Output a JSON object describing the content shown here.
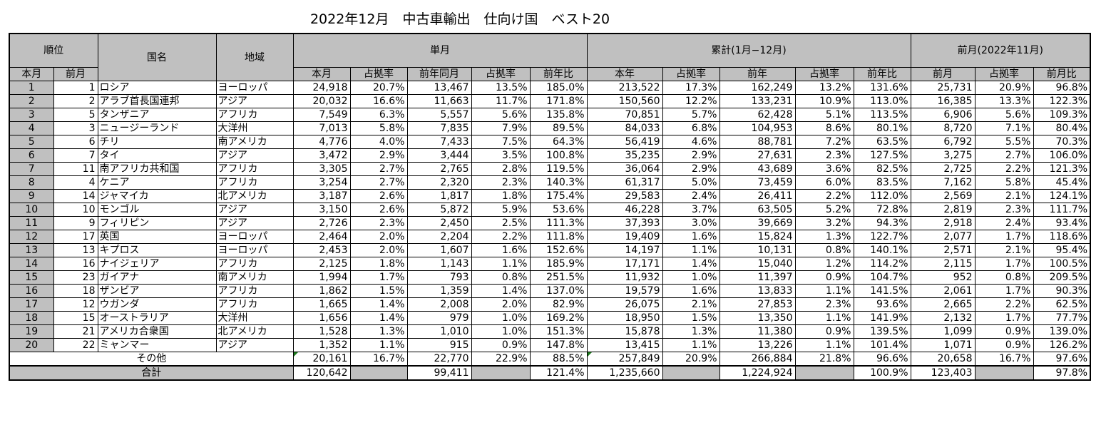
{
  "title": "2022年12月　中古車輸出　仕向け国　ベスト20",
  "headers": {
    "rank": "順位",
    "country": "国名",
    "region": "地域",
    "single": "単月",
    "cumulative": "累計(1月−12月)",
    "prev_month": "前月(2022年11月)",
    "rank_cur": "本月",
    "rank_prev": "前月",
    "s_cur": "本月",
    "s_share": "占拠率",
    "s_ly": "前年同月",
    "s_ly_share": "占拠率",
    "s_yoy": "前年比",
    "c_cur": "本年",
    "c_share": "占拠率",
    "c_ly": "前年",
    "c_ly_share": "占拠率",
    "c_yoy": "前年比",
    "p_val": "前月",
    "p_share": "占拠率",
    "p_ratio": "前月比"
  },
  "rows": [
    {
      "rank": "1",
      "prev_rank": "1",
      "country": "ロシア",
      "region": "ヨーロッパ",
      "s_cur": "24,918",
      "s_share": "20.7%",
      "s_ly": "13,467",
      "s_ly_share": "13.5%",
      "s_yoy": "185.0%",
      "c_cur": "213,522",
      "c_share": "17.3%",
      "c_ly": "162,249",
      "c_ly_share": "13.2%",
      "c_yoy": "131.6%",
      "p_val": "25,731",
      "p_share": "20.9%",
      "p_ratio": "96.8%"
    },
    {
      "rank": "2",
      "prev_rank": "2",
      "country": "アラブ首長国連邦",
      "region": "アジア",
      "s_cur": "20,032",
      "s_share": "16.6%",
      "s_ly": "11,663",
      "s_ly_share": "11.7%",
      "s_yoy": "171.8%",
      "c_cur": "150,560",
      "c_share": "12.2%",
      "c_ly": "133,231",
      "c_ly_share": "10.9%",
      "c_yoy": "113.0%",
      "p_val": "16,385",
      "p_share": "13.3%",
      "p_ratio": "122.3%"
    },
    {
      "rank": "3",
      "prev_rank": "5",
      "country": "タンザニア",
      "region": "アフリカ",
      "s_cur": "7,549",
      "s_share": "6.3%",
      "s_ly": "5,557",
      "s_ly_share": "5.6%",
      "s_yoy": "135.8%",
      "c_cur": "70,851",
      "c_share": "5.7%",
      "c_ly": "62,428",
      "c_ly_share": "5.1%",
      "c_yoy": "113.5%",
      "p_val": "6,906",
      "p_share": "5.6%",
      "p_ratio": "109.3%"
    },
    {
      "rank": "4",
      "prev_rank": "3",
      "country": "ニュージーランド",
      "region": "大洋州",
      "s_cur": "7,013",
      "s_share": "5.8%",
      "s_ly": "7,835",
      "s_ly_share": "7.9%",
      "s_yoy": "89.5%",
      "c_cur": "84,033",
      "c_share": "6.8%",
      "c_ly": "104,953",
      "c_ly_share": "8.6%",
      "c_yoy": "80.1%",
      "p_val": "8,720",
      "p_share": "7.1%",
      "p_ratio": "80.4%"
    },
    {
      "rank": "5",
      "prev_rank": "6",
      "country": "チリ",
      "region": "南アメリカ",
      "s_cur": "4,776",
      "s_share": "4.0%",
      "s_ly": "7,433",
      "s_ly_share": "7.5%",
      "s_yoy": "64.3%",
      "c_cur": "56,419",
      "c_share": "4.6%",
      "c_ly": "88,781",
      "c_ly_share": "7.2%",
      "c_yoy": "63.5%",
      "p_val": "6,792",
      "p_share": "5.5%",
      "p_ratio": "70.3%"
    },
    {
      "rank": "6",
      "prev_rank": "7",
      "country": "タイ",
      "region": "アジア",
      "s_cur": "3,472",
      "s_share": "2.9%",
      "s_ly": "3,444",
      "s_ly_share": "3.5%",
      "s_yoy": "100.8%",
      "c_cur": "35,235",
      "c_share": "2.9%",
      "c_ly": "27,631",
      "c_ly_share": "2.3%",
      "c_yoy": "127.5%",
      "p_val": "3,275",
      "p_share": "2.7%",
      "p_ratio": "106.0%"
    },
    {
      "rank": "7",
      "prev_rank": "11",
      "country": "南アフリカ共和国",
      "region": "アフリカ",
      "s_cur": "3,305",
      "s_share": "2.7%",
      "s_ly": "2,765",
      "s_ly_share": "2.8%",
      "s_yoy": "119.5%",
      "c_cur": "36,064",
      "c_share": "2.9%",
      "c_ly": "43,689",
      "c_ly_share": "3.6%",
      "c_yoy": "82.5%",
      "p_val": "2,725",
      "p_share": "2.2%",
      "p_ratio": "121.3%"
    },
    {
      "rank": "8",
      "prev_rank": "4",
      "country": "ケニア",
      "region": "アフリカ",
      "s_cur": "3,254",
      "s_share": "2.7%",
      "s_ly": "2,320",
      "s_ly_share": "2.3%",
      "s_yoy": "140.3%",
      "c_cur": "61,317",
      "c_share": "5.0%",
      "c_ly": "73,459",
      "c_ly_share": "6.0%",
      "c_yoy": "83.5%",
      "p_val": "7,162",
      "p_share": "5.8%",
      "p_ratio": "45.4%"
    },
    {
      "rank": "9",
      "prev_rank": "14",
      "country": "ジャマイカ",
      "region": "北アメリカ",
      "s_cur": "3,187",
      "s_share": "2.6%",
      "s_ly": "1,817",
      "s_ly_share": "1.8%",
      "s_yoy": "175.4%",
      "c_cur": "29,583",
      "c_share": "2.4%",
      "c_ly": "26,411",
      "c_ly_share": "2.2%",
      "c_yoy": "112.0%",
      "p_val": "2,569",
      "p_share": "2.1%",
      "p_ratio": "124.1%"
    },
    {
      "rank": "10",
      "prev_rank": "10",
      "country": "モンゴル",
      "region": "アジア",
      "s_cur": "3,150",
      "s_share": "2.6%",
      "s_ly": "5,872",
      "s_ly_share": "5.9%",
      "s_yoy": "53.6%",
      "c_cur": "46,228",
      "c_share": "3.7%",
      "c_ly": "63,505",
      "c_ly_share": "5.2%",
      "c_yoy": "72.8%",
      "p_val": "2,819",
      "p_share": "2.3%",
      "p_ratio": "111.7%"
    },
    {
      "rank": "11",
      "prev_rank": "9",
      "country": "フィリピン",
      "region": "アジア",
      "s_cur": "2,726",
      "s_share": "2.3%",
      "s_ly": "2,450",
      "s_ly_share": "2.5%",
      "s_yoy": "111.3%",
      "c_cur": "37,393",
      "c_share": "3.0%",
      "c_ly": "39,669",
      "c_ly_share": "3.2%",
      "c_yoy": "94.3%",
      "p_val": "2,918",
      "p_share": "2.4%",
      "p_ratio": "93.4%"
    },
    {
      "rank": "12",
      "prev_rank": "17",
      "country": "英国",
      "region": "ヨーロッパ",
      "s_cur": "2,464",
      "s_share": "2.0%",
      "s_ly": "2,204",
      "s_ly_share": "2.2%",
      "s_yoy": "111.8%",
      "c_cur": "19,409",
      "c_share": "1.6%",
      "c_ly": "15,824",
      "c_ly_share": "1.3%",
      "c_yoy": "122.7%",
      "p_val": "2,077",
      "p_share": "1.7%",
      "p_ratio": "118.6%"
    },
    {
      "rank": "13",
      "prev_rank": "13",
      "country": "キプロス",
      "region": "ヨーロッパ",
      "s_cur": "2,453",
      "s_share": "2.0%",
      "s_ly": "1,607",
      "s_ly_share": "1.6%",
      "s_yoy": "152.6%",
      "c_cur": "14,197",
      "c_share": "1.1%",
      "c_ly": "10,131",
      "c_ly_share": "0.8%",
      "c_yoy": "140.1%",
      "p_val": "2,571",
      "p_share": "2.1%",
      "p_ratio": "95.4%"
    },
    {
      "rank": "14",
      "prev_rank": "16",
      "country": "ナイジェリア",
      "region": "アフリカ",
      "s_cur": "2,125",
      "s_share": "1.8%",
      "s_ly": "1,143",
      "s_ly_share": "1.1%",
      "s_yoy": "185.9%",
      "c_cur": "17,171",
      "c_share": "1.4%",
      "c_ly": "15,040",
      "c_ly_share": "1.2%",
      "c_yoy": "114.2%",
      "p_val": "2,115",
      "p_share": "1.7%",
      "p_ratio": "100.5%"
    },
    {
      "rank": "15",
      "prev_rank": "23",
      "country": "ガイアナ",
      "region": "南アメリカ",
      "s_cur": "1,994",
      "s_share": "1.7%",
      "s_ly": "793",
      "s_ly_share": "0.8%",
      "s_yoy": "251.5%",
      "c_cur": "11,932",
      "c_share": "1.0%",
      "c_ly": "11,397",
      "c_ly_share": "0.9%",
      "c_yoy": "104.7%",
      "p_val": "952",
      "p_share": "0.8%",
      "p_ratio": "209.5%"
    },
    {
      "rank": "16",
      "prev_rank": "18",
      "country": "ザンビア",
      "region": "アフリカ",
      "s_cur": "1,862",
      "s_share": "1.5%",
      "s_ly": "1,359",
      "s_ly_share": "1.4%",
      "s_yoy": "137.0%",
      "c_cur": "19,579",
      "c_share": "1.6%",
      "c_ly": "13,833",
      "c_ly_share": "1.1%",
      "c_yoy": "141.5%",
      "p_val": "2,061",
      "p_share": "1.7%",
      "p_ratio": "90.3%"
    },
    {
      "rank": "17",
      "prev_rank": "12",
      "country": "ウガンダ",
      "region": "アフリカ",
      "s_cur": "1,665",
      "s_share": "1.4%",
      "s_ly": "2,008",
      "s_ly_share": "2.0%",
      "s_yoy": "82.9%",
      "c_cur": "26,075",
      "c_share": "2.1%",
      "c_ly": "27,853",
      "c_ly_share": "2.3%",
      "c_yoy": "93.6%",
      "p_val": "2,665",
      "p_share": "2.2%",
      "p_ratio": "62.5%"
    },
    {
      "rank": "18",
      "prev_rank": "15",
      "country": "オーストラリア",
      "region": "大洋州",
      "s_cur": "1,656",
      "s_share": "1.4%",
      "s_ly": "979",
      "s_ly_share": "1.0%",
      "s_yoy": "169.2%",
      "c_cur": "18,950",
      "c_share": "1.5%",
      "c_ly": "13,350",
      "c_ly_share": "1.1%",
      "c_yoy": "141.9%",
      "p_val": "2,132",
      "p_share": "1.7%",
      "p_ratio": "77.7%"
    },
    {
      "rank": "19",
      "prev_rank": "21",
      "country": "アメリカ合衆国",
      "region": "北アメリカ",
      "s_cur": "1,528",
      "s_share": "1.3%",
      "s_ly": "1,010",
      "s_ly_share": "1.0%",
      "s_yoy": "151.3%",
      "c_cur": "15,878",
      "c_share": "1.3%",
      "c_ly": "11,380",
      "c_ly_share": "0.9%",
      "c_yoy": "139.5%",
      "p_val": "1,099",
      "p_share": "0.9%",
      "p_ratio": "139.0%"
    },
    {
      "rank": "20",
      "prev_rank": "22",
      "country": "ミャンマー",
      "region": "アジア",
      "s_cur": "1,352",
      "s_share": "1.1%",
      "s_ly": "915",
      "s_ly_share": "0.9%",
      "s_yoy": "147.8%",
      "c_cur": "13,415",
      "c_share": "1.1%",
      "c_ly": "13,226",
      "c_ly_share": "1.1%",
      "c_yoy": "101.4%",
      "p_val": "1,071",
      "p_share": "0.9%",
      "p_ratio": "126.2%"
    }
  ],
  "other": {
    "label": "その他",
    "s_cur": "20,161",
    "s_share": "16.7%",
    "s_ly": "22,770",
    "s_ly_share": "22.9%",
    "s_yoy": "88.5%",
    "c_cur": "257,849",
    "c_share": "20.9%",
    "c_ly": "266,884",
    "c_ly_share": "21.8%",
    "c_yoy": "96.6%",
    "p_val": "20,658",
    "p_share": "16.7%",
    "p_ratio": "97.6%"
  },
  "total": {
    "label": "合計",
    "s_cur": "120,642",
    "s_ly": "99,411",
    "s_yoy": "121.4%",
    "c_cur": "1,235,660",
    "c_ly": "1,224,924",
    "c_yoy": "100.9%",
    "p_val": "123,403",
    "p_ratio": "97.8%"
  },
  "colors": {
    "header_bg": "#c0c0c0",
    "border": "#000000",
    "marker": "#1e7b1e"
  }
}
